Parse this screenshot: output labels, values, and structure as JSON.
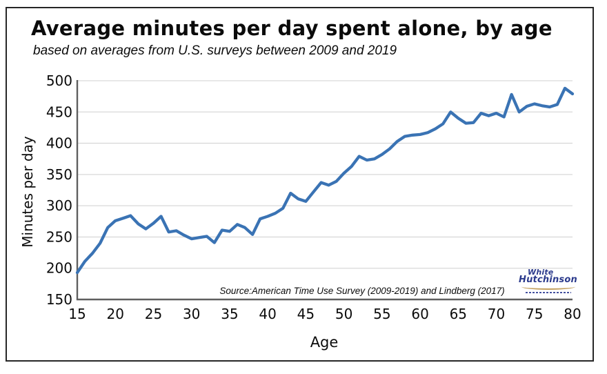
{
  "chart_data": {
    "type": "line",
    "title": "Average minutes per day spent alone, by age",
    "subtitle": "based on averages from U.S. surveys between 2009 and 2019",
    "xlabel": "Age",
    "ylabel": "Minutes per day",
    "source_note": "Source:American Time Use Survey (2009-2019) and Lindberg (2017)",
    "xlim": [
      15,
      80
    ],
    "ylim": [
      150,
      500
    ],
    "x_ticks": [
      15,
      20,
      25,
      30,
      35,
      40,
      45,
      50,
      55,
      60,
      65,
      70,
      75,
      80
    ],
    "y_ticks": [
      150,
      200,
      250,
      300,
      350,
      400,
      450,
      500
    ],
    "grid": "horizontal",
    "legend": "none",
    "colors": {
      "line": "#3a73b4",
      "grid": "#d9d9d9",
      "axis": "#5f5f5f",
      "text": "#0b0b0b"
    },
    "series": [
      {
        "name": "Average minutes per day spent alone",
        "x": [
          15,
          16,
          17,
          18,
          19,
          20,
          21,
          22,
          23,
          24,
          25,
          26,
          27,
          28,
          29,
          30,
          31,
          32,
          33,
          34,
          35,
          36,
          37,
          38,
          39,
          40,
          41,
          42,
          43,
          44,
          45,
          46,
          47,
          48,
          49,
          50,
          51,
          52,
          53,
          54,
          55,
          56,
          57,
          58,
          59,
          60,
          61,
          62,
          63,
          64,
          65,
          66,
          67,
          68,
          69,
          70,
          71,
          72,
          73,
          74,
          75,
          76,
          77,
          78,
          79,
          80
        ],
        "y": [
          193,
          211,
          224,
          240,
          265,
          276,
          280,
          284,
          271,
          263,
          272,
          283,
          258,
          260,
          253,
          247,
          249,
          251,
          241,
          261,
          259,
          270,
          265,
          254,
          279,
          283,
          288,
          296,
          320,
          311,
          307,
          322,
          337,
          333,
          339,
          352,
          363,
          379,
          373,
          375,
          382,
          391,
          403,
          411,
          413,
          414,
          417,
          423,
          431,
          450,
          440,
          432,
          433,
          448,
          444,
          448,
          442,
          478,
          450,
          459,
          463,
          460,
          458,
          462,
          488,
          479
        ]
      }
    ]
  },
  "logo": {
    "line1": "White",
    "line2": "Hutchinson"
  }
}
